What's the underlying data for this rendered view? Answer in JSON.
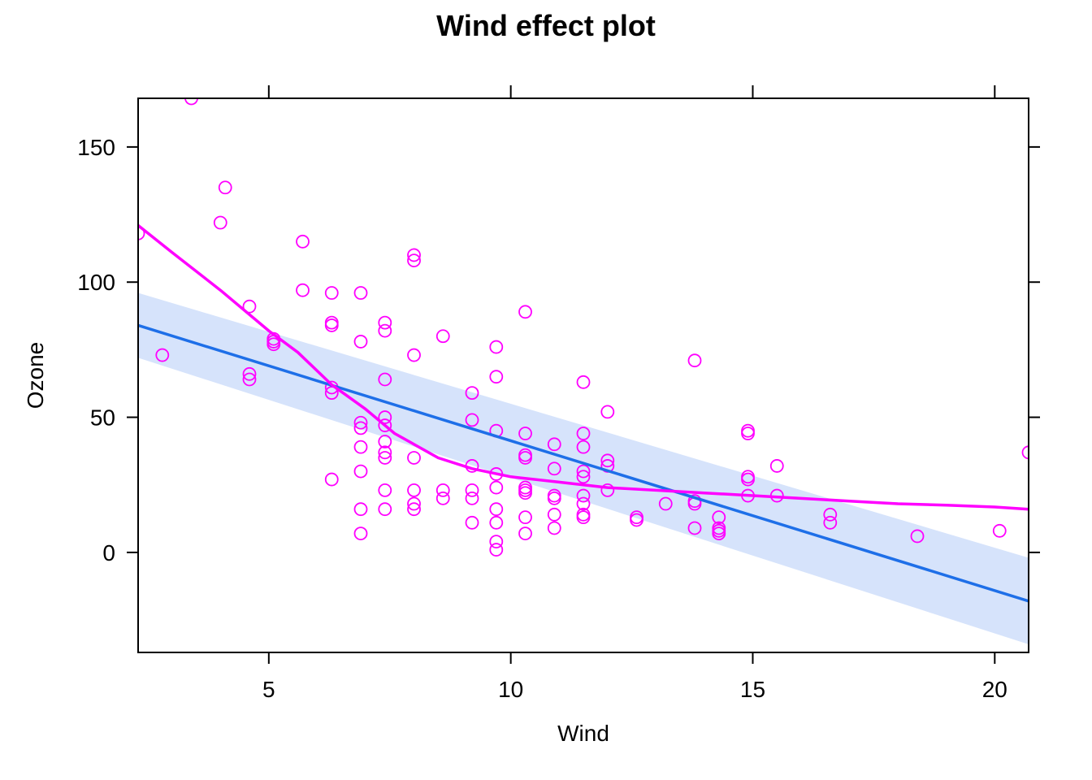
{
  "chart_data": {
    "type": "scatter",
    "title": "Wind effect plot",
    "xlabel": "Wind",
    "ylabel": "Ozone",
    "xlim": [
      2.3,
      20.7
    ],
    "ylim": [
      -37,
      168
    ],
    "xticks": [
      5,
      10,
      15,
      20
    ],
    "yticks": [
      0,
      50,
      100,
      150
    ],
    "xtick_labels": [
      "5",
      "10",
      "15",
      "20"
    ],
    "ytick_labels": [
      "0",
      "50",
      "100",
      "150"
    ],
    "grid": false,
    "colors": {
      "points": "#FF00FF",
      "smooth": "#FF00FF",
      "fit": "#1E6FE8",
      "band": "#D6E3FB"
    },
    "points": [
      [
        3.4,
        168
      ],
      [
        2.3,
        118
      ],
      [
        4.0,
        122
      ],
      [
        4.1,
        135
      ],
      [
        2.8,
        73
      ],
      [
        5.7,
        115
      ],
      [
        5.7,
        97
      ],
      [
        4.6,
        91
      ],
      [
        4.6,
        66
      ],
      [
        4.6,
        64
      ],
      [
        5.1,
        79
      ],
      [
        5.1,
        78
      ],
      [
        5.1,
        77
      ],
      [
        6.3,
        96
      ],
      [
        6.3,
        84
      ],
      [
        6.3,
        85
      ],
      [
        6.3,
        61
      ],
      [
        6.3,
        59
      ],
      [
        6.3,
        27
      ],
      [
        6.9,
        96
      ],
      [
        6.9,
        78
      ],
      [
        6.9,
        48
      ],
      [
        6.9,
        46
      ],
      [
        6.9,
        39
      ],
      [
        6.9,
        30
      ],
      [
        6.9,
        16
      ],
      [
        6.9,
        7
      ],
      [
        7.4,
        85
      ],
      [
        7.4,
        82
      ],
      [
        7.4,
        64
      ],
      [
        7.4,
        50
      ],
      [
        7.4,
        47
      ],
      [
        7.4,
        41
      ],
      [
        7.4,
        37
      ],
      [
        7.4,
        35
      ],
      [
        7.4,
        23
      ],
      [
        7.4,
        16
      ],
      [
        8.0,
        110
      ],
      [
        8.0,
        108
      ],
      [
        8.0,
        73
      ],
      [
        8.0,
        35
      ],
      [
        8.0,
        23
      ],
      [
        8.0,
        18
      ],
      [
        8.0,
        16
      ],
      [
        8.6,
        80
      ],
      [
        8.6,
        23
      ],
      [
        8.6,
        20
      ],
      [
        9.2,
        59
      ],
      [
        9.2,
        49
      ],
      [
        9.2,
        32
      ],
      [
        9.2,
        23
      ],
      [
        9.2,
        20
      ],
      [
        9.2,
        11
      ],
      [
        9.7,
        76
      ],
      [
        9.7,
        65
      ],
      [
        9.7,
        45
      ],
      [
        9.7,
        29
      ],
      [
        9.7,
        24
      ],
      [
        9.7,
        16
      ],
      [
        9.7,
        11
      ],
      [
        9.7,
        4
      ],
      [
        9.7,
        1
      ],
      [
        10.3,
        89
      ],
      [
        10.3,
        44
      ],
      [
        10.3,
        36
      ],
      [
        10.3,
        35
      ],
      [
        10.3,
        24
      ],
      [
        10.3,
        23
      ],
      [
        10.3,
        22
      ],
      [
        10.3,
        13
      ],
      [
        10.3,
        7
      ],
      [
        10.9,
        40
      ],
      [
        10.9,
        31
      ],
      [
        10.9,
        21
      ],
      [
        10.9,
        20
      ],
      [
        10.9,
        14
      ],
      [
        10.9,
        9
      ],
      [
        11.5,
        63
      ],
      [
        11.5,
        44
      ],
      [
        11.5,
        39
      ],
      [
        11.5,
        30
      ],
      [
        11.5,
        28
      ],
      [
        11.5,
        21
      ],
      [
        11.5,
        18
      ],
      [
        11.5,
        14
      ],
      [
        11.5,
        13
      ],
      [
        12.0,
        52
      ],
      [
        12.0,
        34
      ],
      [
        12.0,
        32
      ],
      [
        12.0,
        23
      ],
      [
        12.6,
        13
      ],
      [
        12.6,
        12
      ],
      [
        13.2,
        18
      ],
      [
        13.8,
        71
      ],
      [
        13.8,
        19
      ],
      [
        13.8,
        18
      ],
      [
        13.8,
        9
      ],
      [
        14.3,
        13
      ],
      [
        14.3,
        9
      ],
      [
        14.3,
        8
      ],
      [
        14.3,
        7
      ],
      [
        14.9,
        45
      ],
      [
        14.9,
        44
      ],
      [
        14.9,
        28
      ],
      [
        14.9,
        27
      ],
      [
        14.9,
        21
      ],
      [
        15.5,
        32
      ],
      [
        15.5,
        21
      ],
      [
        16.6,
        14
      ],
      [
        16.6,
        11
      ],
      [
        18.4,
        6
      ],
      [
        20.1,
        8
      ],
      [
        20.7,
        37
      ]
    ],
    "fit_line": [
      [
        2.3,
        84
      ],
      [
        20.7,
        -18
      ]
    ],
    "confidence_band": {
      "x": [
        2.3,
        20.7
      ],
      "lower": [
        72,
        -34
      ],
      "upper": [
        96,
        -2
      ]
    },
    "smooth_line": [
      [
        2.3,
        121
      ],
      [
        3.0,
        111
      ],
      [
        4.0,
        97
      ],
      [
        5.0,
        82
      ],
      [
        5.6,
        74
      ],
      [
        6.3,
        62
      ],
      [
        7.0,
        53
      ],
      [
        7.6,
        44
      ],
      [
        8.5,
        35
      ],
      [
        9.2,
        31
      ],
      [
        10.0,
        28
      ],
      [
        11.0,
        26
      ],
      [
        12.0,
        24
      ],
      [
        13.0,
        23
      ],
      [
        14.0,
        22
      ],
      [
        15.0,
        21
      ],
      [
        16.0,
        20
      ],
      [
        17.0,
        19
      ],
      [
        18.0,
        18
      ],
      [
        19.0,
        17.5
      ],
      [
        20.0,
        16.8
      ],
      [
        20.7,
        16
      ]
    ]
  }
}
